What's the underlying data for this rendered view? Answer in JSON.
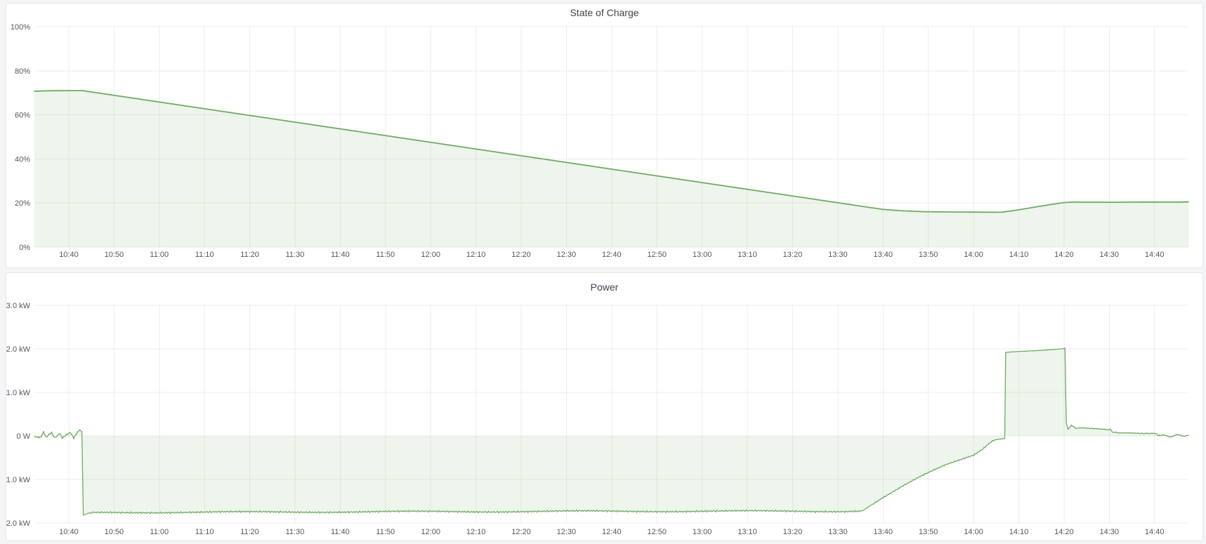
{
  "colors": {
    "accent_green": "#6fab62",
    "fill_green": "rgba(111,171,98,0.12)",
    "grid": "rgba(33,37,41,0.08)",
    "axis_text": "#55565e",
    "title_text": "#3f434a",
    "panel_bg": "#ffffff",
    "panel_border": "#e3e6e8",
    "page_bg": "#f4f5f6"
  },
  "panels": [
    {
      "title": "State of Charge"
    },
    {
      "title": "Power"
    }
  ],
  "chart_data": [
    {
      "type": "area",
      "title": "State of Charge",
      "legend_position": "none",
      "grid": true,
      "x_axis": {
        "unit": "time",
        "domain_minutes": [
          632.4,
          887.5
        ],
        "tick_minutes": [
          640,
          650,
          660,
          670,
          680,
          690,
          700,
          710,
          720,
          730,
          740,
          750,
          760,
          770,
          780,
          790,
          800,
          810,
          820,
          830,
          840,
          850,
          860,
          870,
          880
        ],
        "tick_labels": [
          "10:40",
          "10:50",
          "11:00",
          "11:10",
          "11:20",
          "11:30",
          "11:40",
          "11:50",
          "12:00",
          "12:10",
          "12:20",
          "12:30",
          "12:40",
          "12:50",
          "13:00",
          "13:10",
          "13:20",
          "13:30",
          "13:40",
          "13:50",
          "14:00",
          "14:10",
          "14:20",
          "14:30",
          "14:40"
        ]
      },
      "y_axis": {
        "unit": "percent",
        "domain": [
          0,
          100
        ],
        "tick_values": [
          0,
          20,
          40,
          60,
          80,
          100
        ],
        "tick_labels": [
          "0%",
          "20%",
          "40%",
          "60%",
          "80%",
          "100%"
        ]
      },
      "series": [
        {
          "name": "State of Charge",
          "line_width": 1.8,
          "keypoints_min_value": [
            [
              632.4,
              70.7
            ],
            [
              636,
              70.95
            ],
            [
              643,
              71.0
            ],
            [
              816,
              18.3
            ],
            [
              820,
              17.1
            ],
            [
              824,
              16.5
            ],
            [
              829,
              16.05
            ],
            [
              836,
              15.9
            ],
            [
              846,
              15.8
            ],
            [
              849,
              16.6
            ],
            [
              853,
              17.95
            ],
            [
              857,
              19.3
            ],
            [
              860,
              20.2
            ],
            [
              862,
              20.4
            ],
            [
              872,
              20.35
            ],
            [
              878,
              20.45
            ],
            [
              884,
              20.4
            ],
            [
              887.5,
              20.5
            ]
          ],
          "noise_segments": []
        }
      ]
    },
    {
      "type": "area",
      "title": "Power",
      "legend_position": "none",
      "grid": true,
      "x_axis": {
        "unit": "time",
        "domain_minutes": [
          632.4,
          887.5
        ],
        "tick_minutes": [
          640,
          650,
          660,
          670,
          680,
          690,
          700,
          710,
          720,
          730,
          740,
          750,
          760,
          770,
          780,
          790,
          800,
          810,
          820,
          830,
          840,
          850,
          860,
          870,
          880
        ],
        "tick_labels": [
          "10:40",
          "10:50",
          "11:00",
          "11:10",
          "11:20",
          "11:30",
          "11:40",
          "11:50",
          "12:00",
          "12:10",
          "12:20",
          "12:30",
          "12:40",
          "12:50",
          "13:00",
          "13:10",
          "13:20",
          "13:30",
          "13:40",
          "13:50",
          "14:00",
          "14:10",
          "14:20",
          "14:30",
          "14:40"
        ]
      },
      "y_axis": {
        "unit": "kW",
        "domain": [
          -2.0,
          3.0
        ],
        "tick_values": [
          -2.0,
          -1.0,
          0,
          1.0,
          2.0,
          3.0
        ],
        "tick_labels": [
          "-2.0 kW",
          "-1.0 kW",
          "0 W",
          "1.0 kW",
          "2.0 kW",
          "3.0 kW"
        ]
      },
      "series": [
        {
          "name": "Power",
          "line_width": 1.3,
          "keypoints_min_value": [
            [
              632.4,
              -0.02
            ],
            [
              633.8,
              -0.04
            ],
            [
              634.4,
              0.1
            ],
            [
              635,
              -0.04
            ],
            [
              636.2,
              0.09
            ],
            [
              636.9,
              -0.04
            ],
            [
              637.9,
              0.07
            ],
            [
              638.6,
              -0.04
            ],
            [
              640.4,
              0.09
            ],
            [
              641.1,
              -0.05
            ],
            [
              642.4,
              0.14
            ],
            [
              642.9,
              0.1
            ],
            [
              643.2,
              -1.82
            ],
            [
              644.5,
              -1.77
            ],
            [
              648,
              -1.76
            ],
            [
              680,
              -1.75
            ],
            [
              720,
              -1.74
            ],
            [
              770,
              -1.73
            ],
            [
              812,
              -1.73
            ],
            [
              815.5,
              -1.72
            ],
            [
              817.5,
              -1.58
            ],
            [
              820,
              -1.42
            ],
            [
              822.5,
              -1.27
            ],
            [
              825,
              -1.12
            ],
            [
              828,
              -0.95
            ],
            [
              831,
              -0.8
            ],
            [
              834,
              -0.66
            ],
            [
              837,
              -0.55
            ],
            [
              840,
              -0.44
            ],
            [
              842,
              -0.3
            ],
            [
              843.5,
              -0.16
            ],
            [
              844.5,
              -0.09
            ],
            [
              846.9,
              -0.06
            ],
            [
              847.1,
              1.92
            ],
            [
              850,
              1.94
            ],
            [
              854,
              1.96
            ],
            [
              857,
              1.98
            ],
            [
              859.5,
              2.0
            ],
            [
              860.2,
              2.02
            ],
            [
              860.5,
              0.3
            ],
            [
              860.9,
              0.15
            ],
            [
              861.6,
              0.25
            ],
            [
              862.5,
              0.17
            ],
            [
              864,
              0.18
            ],
            [
              867,
              0.16
            ],
            [
              870.3,
              0.15
            ],
            [
              870.7,
              0.08
            ],
            [
              874,
              0.07
            ],
            [
              877,
              0.06
            ],
            [
              880.4,
              0.05
            ],
            [
              880.9,
              0.0
            ],
            [
              882,
              0.03
            ],
            [
              883.5,
              -0.02
            ],
            [
              885,
              0.04
            ],
            [
              886.5,
              0.0
            ],
            [
              887.5,
              0.02
            ]
          ],
          "noise_segments": [
            [
              633,
              642,
              0.02
            ],
            [
              645,
              815,
              0.02
            ],
            [
              818,
              845,
              0.015
            ],
            [
              862,
              880,
              0.01
            ],
            [
              881,
              887.5,
              0.012
            ]
          ]
        }
      ]
    }
  ]
}
